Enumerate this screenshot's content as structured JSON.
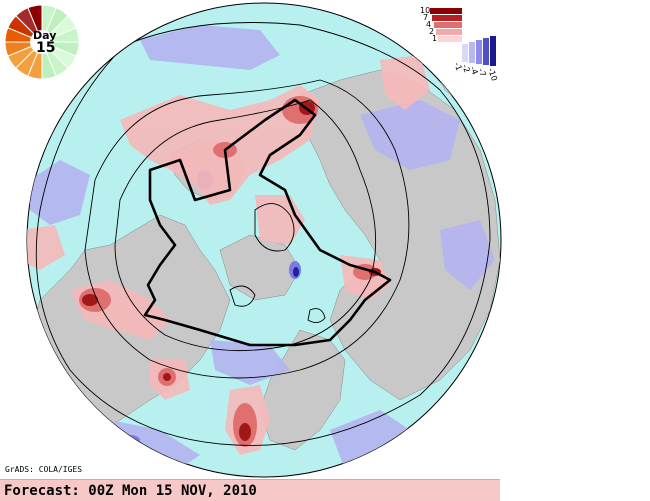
{
  "forecast": {
    "text": "Forecast: 00Z Mon 15 NOV, 2010"
  },
  "credit": "GrADS: COLA/IGES",
  "day_badge": {
    "label": "Day",
    "number": "15",
    "colors_warm": [
      "#8b0000",
      "#a52a2a",
      "#cc3300",
      "#e85d00",
      "#f07f1e",
      "#f5a040"
    ],
    "colors_cool": [
      "#c8f5c8",
      "#bdf0bd",
      "#d8fad8"
    ]
  },
  "color_scale": {
    "labels_warm": [
      "10",
      "7",
      "4",
      "2",
      "1"
    ],
    "labels_cool": [
      "-1",
      "-2",
      "-4",
      "-7",
      "-10"
    ],
    "colors_warm": [
      "#8b0000",
      "#b22222",
      "#e07070",
      "#f4a8a8",
      "#fbd4d4"
    ],
    "colors_cool": [
      "#d8d8f8",
      "#b8b8f4",
      "#8c8cec",
      "#5050c8",
      "#1a1a8c"
    ]
  },
  "map_colors": {
    "ocean": "#b8f0f0",
    "land": "#c8c8c8",
    "pos_light": "#f6b8b8",
    "pos_mid": "#e07070",
    "pos_dark": "#a01818",
    "neg_light": "#b4b4f0",
    "neg_mid": "#7a7ae0",
    "neg_dark": "#2020a0"
  }
}
